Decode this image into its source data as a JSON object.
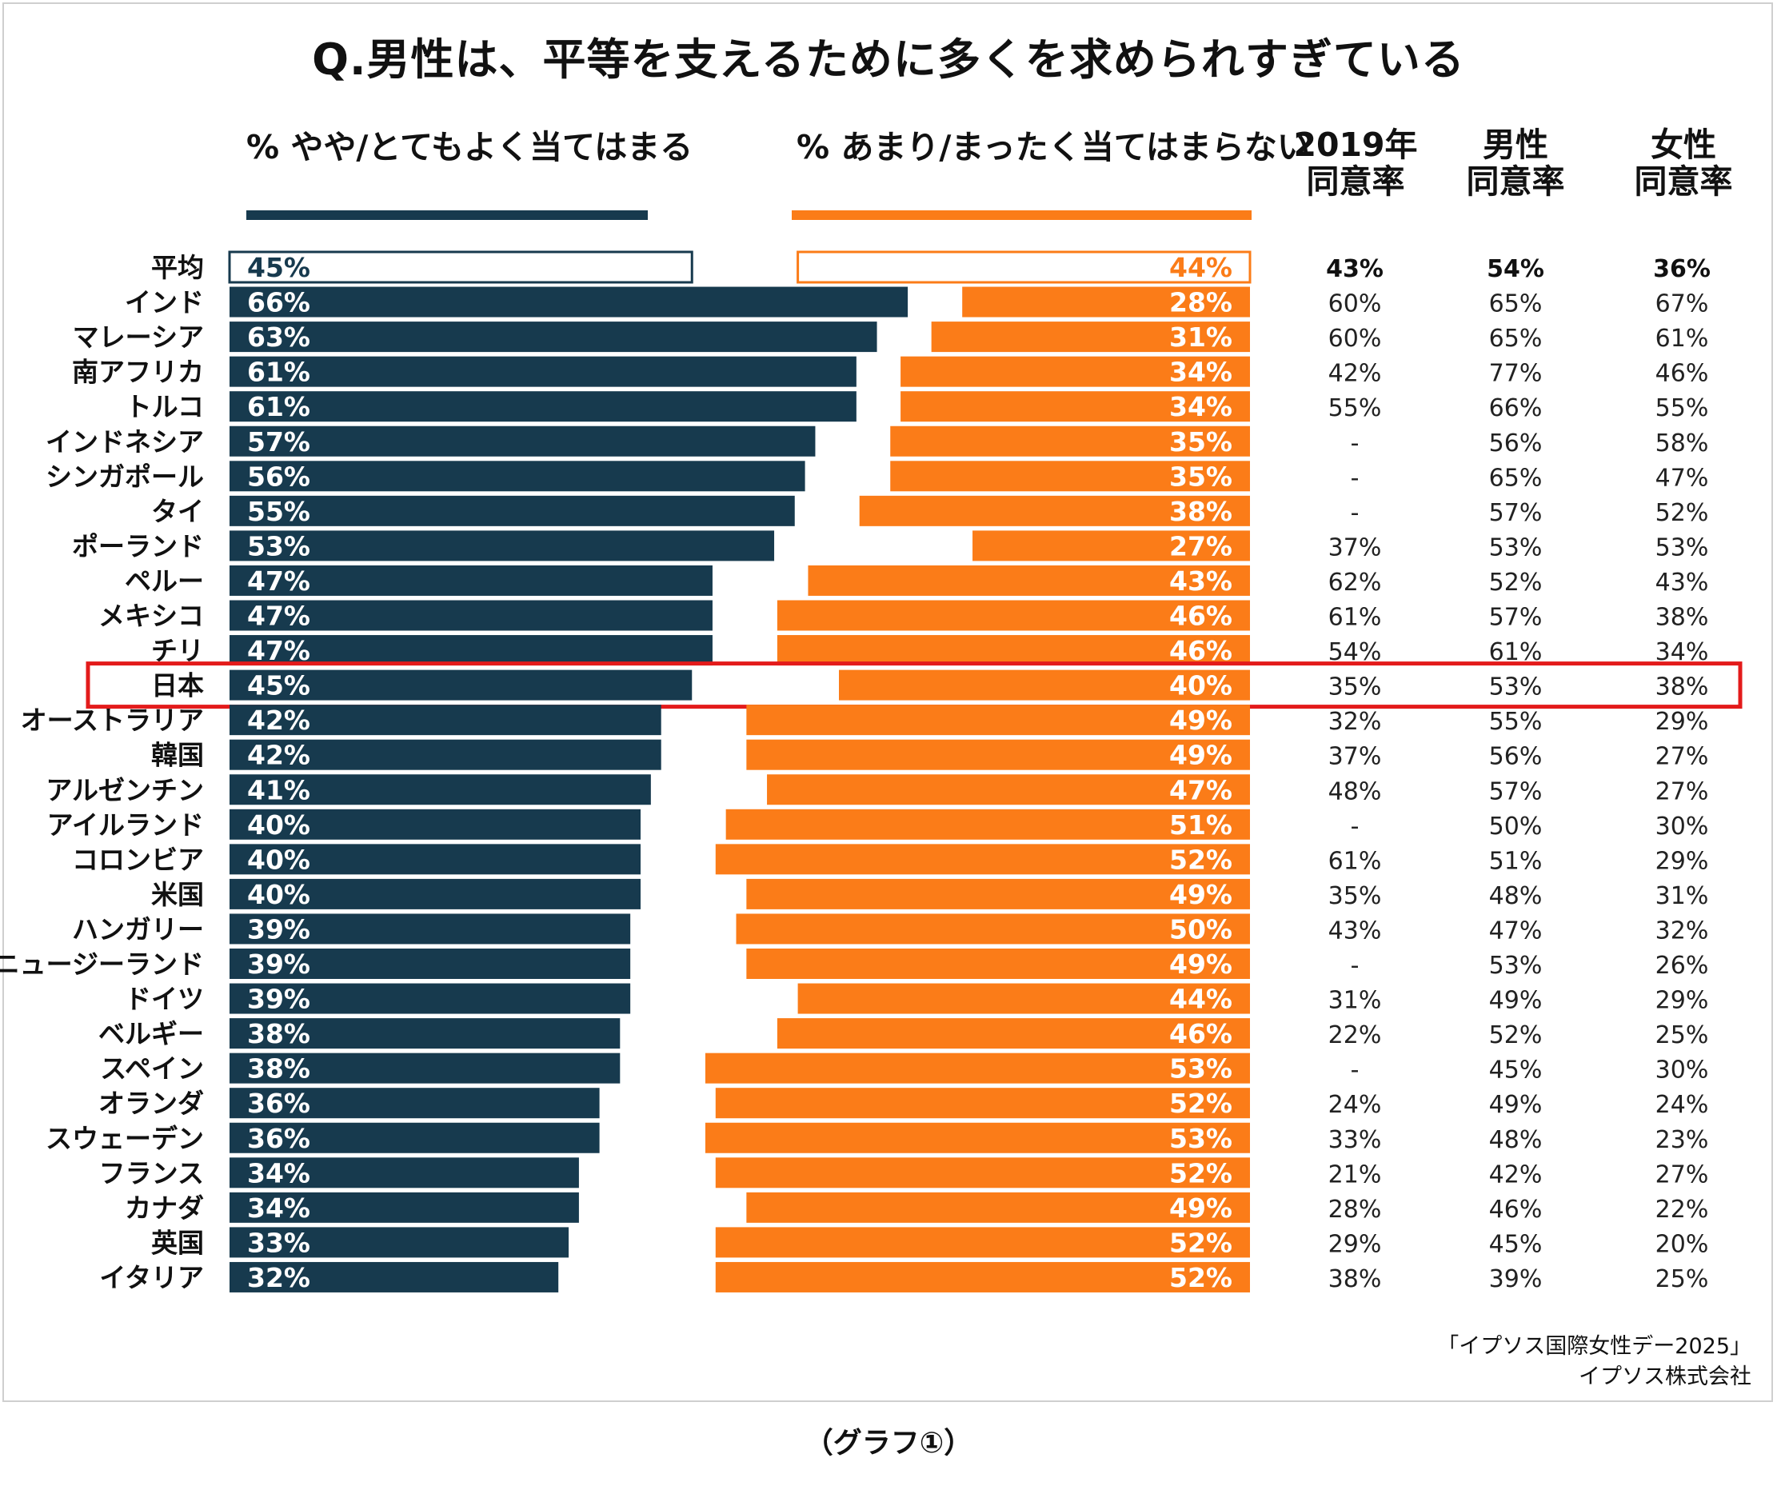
{
  "chart_data": {
    "type": "bar",
    "title": "Q.男性は、平等を支えるために多くを求められすぎている",
    "series_labels": {
      "agree": "% やや/とてもよく当てはまる",
      "disagree": "% あまり/まったく当てはまらない"
    },
    "table_headers": {
      "y2019": [
        "2019年",
        "同意率"
      ],
      "men": [
        "男性",
        "同意率"
      ],
      "women": [
        "女性",
        "同意率"
      ]
    },
    "highlight": "日本",
    "rows": [
      {
        "country": "平均",
        "agree": 45,
        "disagree": 44,
        "agree_label": "45%",
        "disagree_label": "44%",
        "y2019": "43%",
        "men": "54%",
        "women": "36%"
      },
      {
        "country": "インド",
        "agree": 66,
        "disagree": 28,
        "agree_label": "66%",
        "disagree_label": "28%",
        "y2019": "60%",
        "men": "65%",
        "women": "67%"
      },
      {
        "country": "マレーシア",
        "agree": 63,
        "disagree": 31,
        "agree_label": "63%",
        "disagree_label": "31%",
        "y2019": "60%",
        "men": "65%",
        "women": "61%"
      },
      {
        "country": "南アフリカ",
        "agree": 61,
        "disagree": 34,
        "agree_label": "61%",
        "disagree_label": "34%",
        "y2019": "42%",
        "men": "77%",
        "women": "46%"
      },
      {
        "country": "トルコ",
        "agree": 61,
        "disagree": 34,
        "agree_label": "61%",
        "disagree_label": "34%",
        "y2019": "55%",
        "men": "66%",
        "women": "55%"
      },
      {
        "country": "インドネシア",
        "agree": 57,
        "disagree": 35,
        "agree_label": "57%",
        "disagree_label": "35%",
        "y2019": "-",
        "men": "56%",
        "women": "58%"
      },
      {
        "country": "シンガポール",
        "agree": 56,
        "disagree": 35,
        "agree_label": "56%",
        "disagree_label": "35%",
        "y2019": "-",
        "men": "65%",
        "women": "47%"
      },
      {
        "country": "タイ",
        "agree": 55,
        "disagree": 38,
        "agree_label": "55%",
        "disagree_label": "38%",
        "y2019": "-",
        "men": "57%",
        "women": "52%"
      },
      {
        "country": "ポーランド",
        "agree": 53,
        "disagree": 27,
        "agree_label": "53%",
        "disagree_label": "27%",
        "y2019": "37%",
        "men": "53%",
        "women": "53%"
      },
      {
        "country": "ペルー",
        "agree": 47,
        "disagree": 43,
        "agree_label": "47%",
        "disagree_label": "43%",
        "y2019": "62%",
        "men": "52%",
        "women": "43%"
      },
      {
        "country": "メキシコ",
        "agree": 47,
        "disagree": 46,
        "agree_label": "47%",
        "disagree_label": "46%",
        "y2019": "61%",
        "men": "57%",
        "women": "38%"
      },
      {
        "country": "チリ",
        "agree": 47,
        "disagree": 46,
        "agree_label": "47%",
        "disagree_label": "46%",
        "y2019": "54%",
        "men": "61%",
        "women": "34%"
      },
      {
        "country": "日本",
        "agree": 45,
        "disagree": 40,
        "agree_label": "45%",
        "disagree_label": "40%",
        "y2019": "35%",
        "men": "53%",
        "women": "38%"
      },
      {
        "country": "オーストラリア",
        "agree": 42,
        "disagree": 49,
        "agree_label": "42%",
        "disagree_label": "49%",
        "y2019": "32%",
        "men": "55%",
        "women": "29%"
      },
      {
        "country": "韓国",
        "agree": 42,
        "disagree": 49,
        "agree_label": "42%",
        "disagree_label": "49%",
        "y2019": "37%",
        "men": "56%",
        "women": "27%"
      },
      {
        "country": "アルゼンチン",
        "agree": 41,
        "disagree": 47,
        "agree_label": "41%",
        "disagree_label": "47%",
        "y2019": "48%",
        "men": "57%",
        "women": "27%"
      },
      {
        "country": "アイルランド",
        "agree": 40,
        "disagree": 51,
        "agree_label": "40%",
        "disagree_label": "51%",
        "y2019": "-",
        "men": "50%",
        "women": "30%"
      },
      {
        "country": "コロンビア",
        "agree": 40,
        "disagree": 52,
        "agree_label": "40%",
        "disagree_label": "52%",
        "y2019": "61%",
        "men": "51%",
        "women": "29%"
      },
      {
        "country": "米国",
        "agree": 40,
        "disagree": 49,
        "agree_label": "40%",
        "disagree_label": "49%",
        "y2019": "35%",
        "men": "48%",
        "women": "31%"
      },
      {
        "country": "ハンガリー",
        "agree": 39,
        "disagree": 50,
        "agree_label": "39%",
        "disagree_label": "50%",
        "y2019": "43%",
        "men": "47%",
        "women": "32%"
      },
      {
        "country": "ニュージーランド",
        "agree": 39,
        "disagree": 49,
        "agree_label": "39%",
        "disagree_label": "49%",
        "y2019": "-",
        "men": "53%",
        "women": "26%"
      },
      {
        "country": "ドイツ",
        "agree": 39,
        "disagree": 44,
        "agree_label": "39%",
        "disagree_label": "44%",
        "y2019": "31%",
        "men": "49%",
        "women": "29%"
      },
      {
        "country": "ベルギー",
        "agree": 38,
        "disagree": 46,
        "agree_label": "38%",
        "disagree_label": "46%",
        "y2019": "22%",
        "men": "52%",
        "women": "25%"
      },
      {
        "country": "スペイン",
        "agree": 38,
        "disagree": 53,
        "agree_label": "38%",
        "disagree_label": "53%",
        "y2019": "-",
        "men": "45%",
        "women": "30%"
      },
      {
        "country": "オランダ",
        "agree": 36,
        "disagree": 52,
        "agree_label": "36%",
        "disagree_label": "52%",
        "y2019": "24%",
        "men": "49%",
        "women": "24%"
      },
      {
        "country": "スウェーデン",
        "agree": 36,
        "disagree": 53,
        "agree_label": "36%",
        "disagree_label": "53%",
        "y2019": "33%",
        "men": "48%",
        "women": "23%"
      },
      {
        "country": "フランス",
        "agree": 34,
        "disagree": 52,
        "agree_label": "34%",
        "disagree_label": "52%",
        "y2019": "21%",
        "men": "42%",
        "women": "27%"
      },
      {
        "country": "カナダ",
        "agree": 34,
        "disagree": 49,
        "agree_label": "34%",
        "disagree_label": "49%",
        "y2019": "28%",
        "men": "46%",
        "women": "22%"
      },
      {
        "country": "英国",
        "agree": 33,
        "disagree": 52,
        "agree_label": "33%",
        "disagree_label": "52%",
        "y2019": "29%",
        "men": "45%",
        "women": "20%"
      },
      {
        "country": "イタリア",
        "agree": 32,
        "disagree": 52,
        "agree_label": "32%",
        "disagree_label": "52%",
        "y2019": "38%",
        "men": "39%",
        "women": "25%"
      }
    ]
  },
  "source_lines": [
    "「イプソス国際女性デー2025」",
    "イプソス株式会社"
  ],
  "caption": "（グラフ①）",
  "colors": {
    "agree": "#173a4e",
    "disagree": "#fb7c18",
    "highlight": "#e31b1b",
    "bar_text": "#ffffff"
  }
}
